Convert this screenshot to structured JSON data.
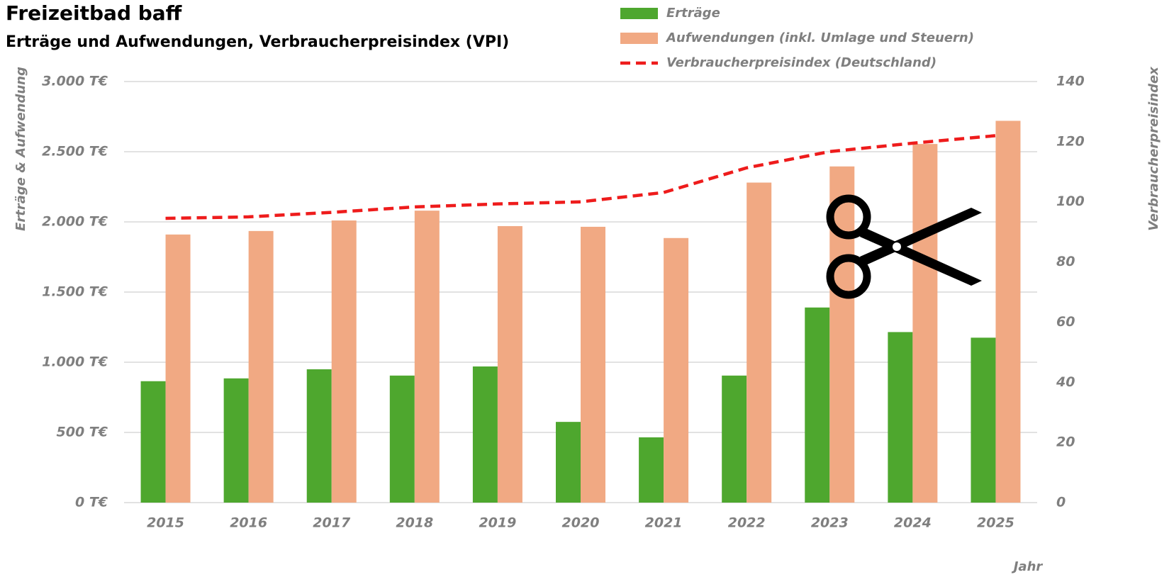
{
  "chart_data": {
    "type": "bar_line",
    "title": "Freizeitbad baff",
    "subtitle": "Erträge und Aufwendungen, Verbraucherpreisindex (VPI)",
    "y_label": "Erträge & Aufwendung",
    "y2_label": "Verbraucherpreisindex",
    "x_label": "Jahr",
    "categories": [
      "2015",
      "2016",
      "2017",
      "2018",
      "2019",
      "2020",
      "2021",
      "2022",
      "2023",
      "2024",
      "2025"
    ],
    "series": [
      {
        "name": "Erträge",
        "color": "#4ea72e",
        "type": "bar",
        "values": [
          865,
          885,
          950,
          905,
          970,
          575,
          465,
          905,
          1390,
          1215,
          1175
        ]
      },
      {
        "name": "Aufwendungen (inkl. Umlage und Steuern)",
        "color": "#f1a983",
        "type": "bar",
        "values": [
          1910,
          1935,
          2010,
          2080,
          1970,
          1965,
          1885,
          2280,
          2395,
          2555,
          2720
        ]
      },
      {
        "name": "Verbraucherpreisindex (Deutschland)",
        "color": "#ee1c1c",
        "type": "line",
        "axis": "y2",
        "values": [
          94.5,
          95,
          96.5,
          98.3,
          99.3,
          100,
          103.1,
          111.3,
          116.7,
          119.5,
          122
        ]
      }
    ],
    "ylim": [
      0,
      3000
    ],
    "yticks": [
      {
        "value": 0,
        "label": "0 T€"
      },
      {
        "value": 500,
        "label": "500 T€"
      },
      {
        "value": 1000,
        "label": "1.000 T€"
      },
      {
        "value": 1500,
        "label": "1.500 T€"
      },
      {
        "value": 2000,
        "label": "2.000 T€"
      },
      {
        "value": 2500,
        "label": "2.500 T€"
      },
      {
        "value": 3000,
        "label": "3.000 T€"
      }
    ],
    "y2lim": [
      0,
      140
    ],
    "y2ticks": [
      0,
      20,
      40,
      60,
      80,
      100,
      120,
      140
    ],
    "grid": true,
    "legend": "top"
  }
}
